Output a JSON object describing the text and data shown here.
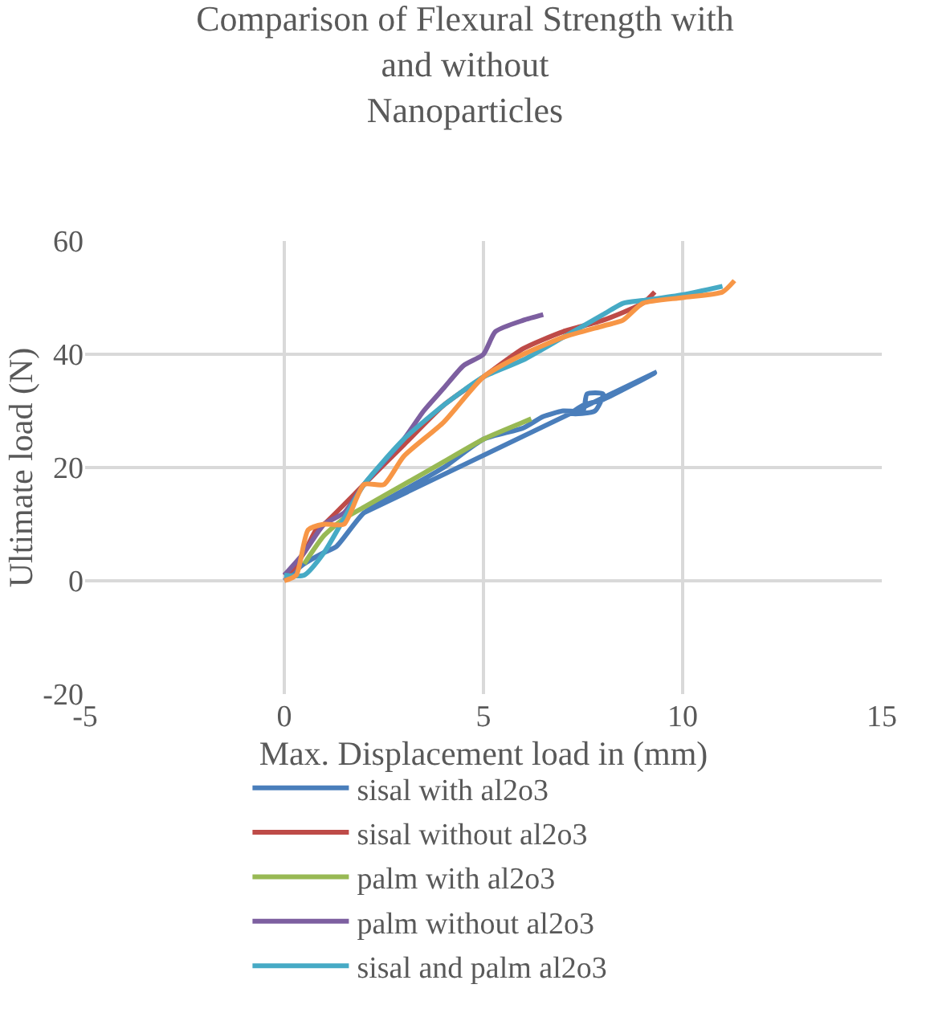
{
  "chart_data": {
    "type": "line",
    "title": "Comparison of Flexural Strength with\nand without\nNanoparticles",
    "xlabel": "Max. Displacement load in (mm)",
    "ylabel": "Ultimate load (N)",
    "xlim": [
      -5,
      15
    ],
    "xticks": [
      -5,
      0,
      5,
      10,
      15
    ],
    "ylim": [
      -20,
      60
    ],
    "yticks": [
      -20,
      0,
      20,
      40,
      60
    ],
    "grid": true,
    "legend": "bottom",
    "marker": "none",
    "line_style": "solid",
    "series": [
      {
        "name": "sisal with al2o3",
        "color": "#4a7ebb",
        "x": [
          0,
          0.5,
          1,
          1.3,
          2,
          3,
          4,
          5,
          6,
          6.5,
          7,
          7.5,
          7.6,
          8,
          7.8,
          7.2,
          7.5,
          8,
          9.3,
          2
        ],
        "values": [
          0,
          3,
          5,
          6,
          12,
          16,
          20,
          25,
          27,
          29,
          30,
          30,
          33,
          33,
          30,
          29.5,
          31,
          32,
          36.7,
          12
        ]
      },
      {
        "name": "sisal without al2o3",
        "color": "#be4b48",
        "x": [
          0,
          0.2,
          0.5,
          0.8,
          1,
          2,
          3,
          4,
          5,
          6,
          7,
          8,
          9,
          9.3
        ],
        "values": [
          1,
          2,
          5,
          9,
          10,
          17,
          24,
          31,
          36,
          41,
          44,
          46,
          49,
          51
        ]
      },
      {
        "name": "palm with al2o3",
        "color": "#98b954",
        "x": [
          0.5,
          1,
          1.5,
          2,
          3,
          4,
          5,
          6,
          6.2
        ],
        "values": [
          3,
          8,
          11,
          13,
          17,
          21,
          25,
          28,
          28.6
        ]
      },
      {
        "name": "palm without al2o3",
        "color": "#7d5fa0",
        "x": [
          0,
          0.5,
          1,
          1.5,
          2,
          3,
          3.5,
          4,
          4.5,
          5,
          5.3,
          6,
          6.5
        ],
        "values": [
          1,
          5,
          10,
          12,
          17,
          25,
          30,
          34,
          38,
          40,
          44,
          46,
          47
        ]
      },
      {
        "name": "sisal and palm al2o3",
        "color": "#46aac5",
        "x": [
          0,
          0.5,
          1,
          1.5,
          2,
          3,
          4,
          5,
          6,
          7,
          8,
          8.5,
          9,
          10,
          11
        ],
        "values": [
          1,
          1,
          5,
          11,
          17,
          25,
          31,
          36,
          39,
          43,
          47,
          49,
          49.5,
          50.5,
          52
        ]
      },
      {
        "color": "#f79646",
        "x": [
          0,
          0.3,
          0.6,
          1,
          1.5,
          2,
          2.5,
          3,
          4,
          5,
          6,
          7,
          8,
          8.5,
          9,
          10,
          11,
          11.3
        ],
        "values": [
          0,
          1,
          9,
          10,
          10,
          17,
          17,
          22,
          28,
          36,
          40,
          43,
          45,
          46,
          49,
          50,
          51,
          53
        ]
      }
    ]
  }
}
